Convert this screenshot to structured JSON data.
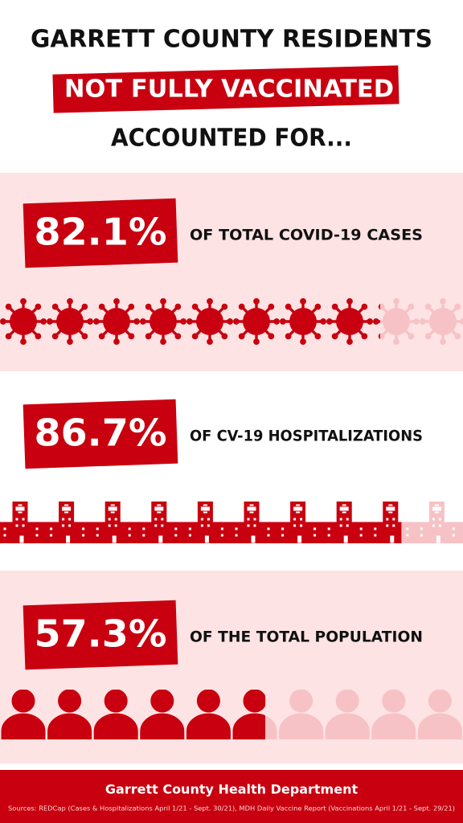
{
  "header": {
    "line1": "GARRETT COUNTY RESIDENTS",
    "line2": "NOT FULLY VACCINATED",
    "line3": "ACCOUNTED FOR..."
  },
  "stats": [
    {
      "value": 82.1,
      "value_label": "82.1%",
      "text": "OF TOTAL COVID-19 CASES"
    },
    {
      "value": 86.7,
      "value_label": "86.7%",
      "text": "OF CV-19 HOSPITALIZATIONS"
    },
    {
      "value": 57.3,
      "value_label": "57.3%",
      "text": "OF THE TOTAL POPULATION"
    }
  ],
  "footer": {
    "title": "Garrett County Health Department",
    "sources": "Sources: REDCap (Cases & Hospitalizations April 1/21 - Sept. 30/21), MDH Daily Vaccine Report (Vaccinations April 1/21 - Sept. 29/21)"
  }
}
